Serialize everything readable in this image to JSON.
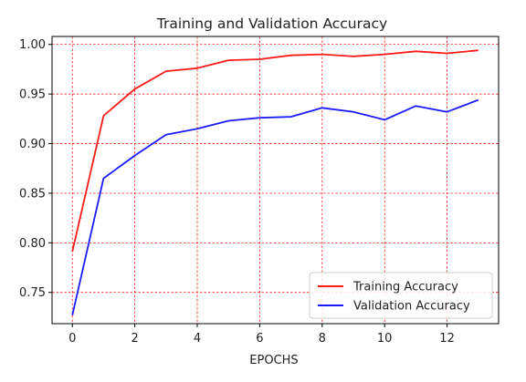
{
  "chart_data": {
    "type": "line",
    "title": "Training and Validation Accuracy",
    "xlabel": "EPOCHS",
    "ylabel": "",
    "x": [
      0,
      1,
      2,
      3,
      4,
      5,
      6,
      7,
      8,
      9,
      10,
      11,
      12,
      13
    ],
    "xlim": [
      -0.65,
      13.65
    ],
    "ylim": [
      0.7185,
      1.008
    ],
    "xticks": [
      0,
      2,
      4,
      6,
      8,
      10,
      12
    ],
    "yticks": [
      0.75,
      0.8,
      0.85,
      0.9,
      0.95,
      1.0
    ],
    "xtick_labels": [
      "0",
      "2",
      "4",
      "6",
      "8",
      "10",
      "12"
    ],
    "ytick_labels": [
      "0.75",
      "0.80",
      "0.85",
      "0.90",
      "0.95",
      "1.00"
    ],
    "grid": true,
    "grid_color": "#ff0000",
    "legend_position": "lower-right",
    "series": [
      {
        "name": "Training Accuracy",
        "color": "#ff1a1a",
        "values": [
          0.791,
          0.928,
          0.955,
          0.973,
          0.976,
          0.984,
          0.985,
          0.989,
          0.99,
          0.988,
          0.99,
          0.993,
          0.991,
          0.994
        ]
      },
      {
        "name": "Validation Accuracy",
        "color": "#1a1aff",
        "values": [
          0.727,
          0.865,
          0.888,
          0.909,
          0.915,
          0.923,
          0.926,
          0.927,
          0.936,
          0.932,
          0.924,
          0.938,
          0.932,
          0.944
        ]
      }
    ]
  }
}
